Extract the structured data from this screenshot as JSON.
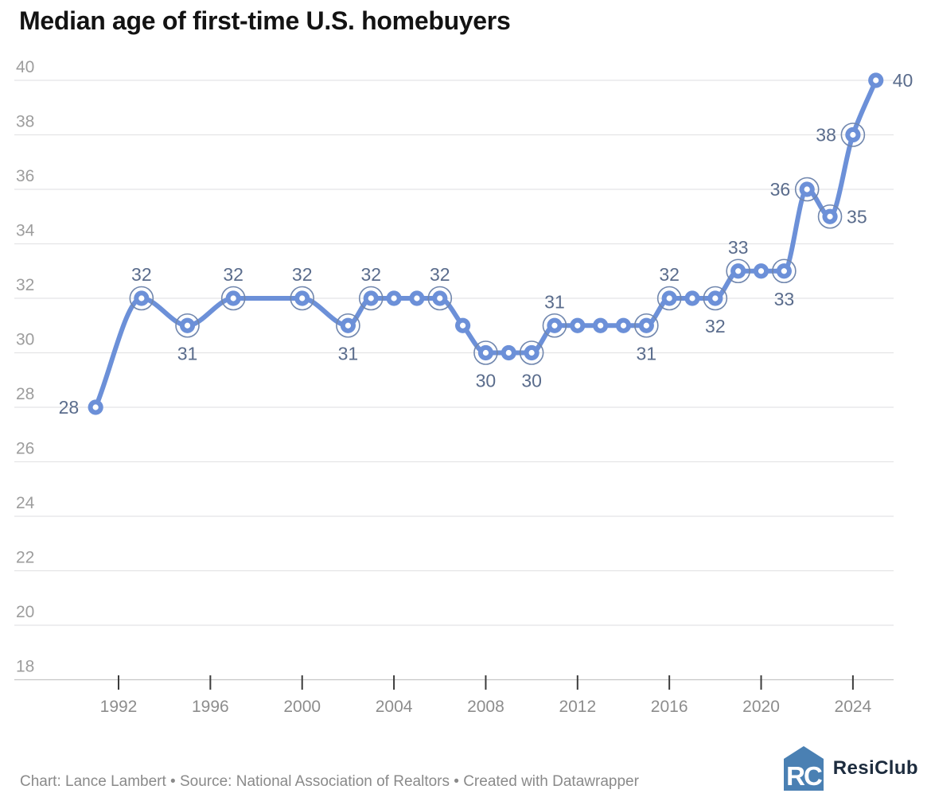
{
  "title": "Median age of first-time U.S. homebuyers",
  "footer": {
    "attribution": "Chart: Lance Lambert • Source: National Association of Realtors • Created with Datawrapper",
    "logo_text": "ResiClub",
    "logo_monogram": "RC"
  },
  "colors": {
    "line": "#6c90d8",
    "point_fill": "#6c90d8",
    "point_hole": "#ffffff",
    "ring": "#7187ae",
    "value_label": "#5a6c8c",
    "grid": "#e4e4e6",
    "baseline": "#c6c6c6",
    "y_tick_label": "#9d9d9d",
    "x_tick_label": "#8d8d8d",
    "tick_mark": "#3c3c3c",
    "title": "#131313",
    "footer_text": "#8a8a8a",
    "logo_blue": "#4a80b3",
    "logo_text_color": "#1d2c3e"
  },
  "chart_data": {
    "type": "line",
    "title": "Median age of first-time U.S. homebuyers",
    "xlabel": "",
    "ylabel": "",
    "ylim": [
      18,
      40
    ],
    "ytick_step": 2,
    "yticks": [
      18,
      20,
      22,
      24,
      26,
      28,
      30,
      32,
      34,
      36,
      38,
      40
    ],
    "xticks": [
      1992,
      1996,
      2000,
      2004,
      2008,
      2012,
      2016,
      2020,
      2024
    ],
    "grid": true,
    "legend_position": "none",
    "x": [
      1991,
      1993,
      1995,
      1997,
      2000,
      2002,
      2003,
      2004,
      2005,
      2006,
      2007,
      2008,
      2009,
      2010,
      2011,
      2012,
      2013,
      2014,
      2015,
      2016,
      2017,
      2018,
      2019,
      2020,
      2021,
      2022,
      2023,
      2024,
      2025
    ],
    "values": [
      28,
      32,
      31,
      32,
      32,
      31,
      32,
      32,
      32,
      32,
      31,
      30,
      30,
      30,
      31,
      31,
      31,
      31,
      31,
      32,
      32,
      32,
      33,
      33,
      33,
      36,
      35,
      38,
      40
    ],
    "points": [
      {
        "year": 1991,
        "value": 28,
        "label": "28",
        "label_pos": "left",
        "ring": false
      },
      {
        "year": 1993,
        "value": 32,
        "label": "32",
        "label_pos": "above",
        "ring": true
      },
      {
        "year": 1995,
        "value": 31,
        "label": "31",
        "label_pos": "below",
        "ring": true
      },
      {
        "year": 1997,
        "value": 32,
        "label": "32",
        "label_pos": "above",
        "ring": true
      },
      {
        "year": 2000,
        "value": 32,
        "label": "32",
        "label_pos": "above",
        "ring": true
      },
      {
        "year": 2002,
        "value": 31,
        "label": "31",
        "label_pos": "below",
        "ring": true
      },
      {
        "year": 2003,
        "value": 32,
        "label": "32",
        "label_pos": "above",
        "ring": true
      },
      {
        "year": 2004,
        "value": 32,
        "label": null,
        "label_pos": null,
        "ring": false
      },
      {
        "year": 2005,
        "value": 32,
        "label": null,
        "label_pos": null,
        "ring": false
      },
      {
        "year": 2006,
        "value": 32,
        "label": "32",
        "label_pos": "above",
        "ring": true
      },
      {
        "year": 2007,
        "value": 31,
        "label": null,
        "label_pos": null,
        "ring": false
      },
      {
        "year": 2008,
        "value": 30,
        "label": "30",
        "label_pos": "below",
        "ring": true
      },
      {
        "year": 2009,
        "value": 30,
        "label": null,
        "label_pos": null,
        "ring": false
      },
      {
        "year": 2010,
        "value": 30,
        "label": "30",
        "label_pos": "below",
        "ring": true
      },
      {
        "year": 2011,
        "value": 31,
        "label": "31",
        "label_pos": "above",
        "ring": true
      },
      {
        "year": 2012,
        "value": 31,
        "label": null,
        "label_pos": null,
        "ring": false
      },
      {
        "year": 2013,
        "value": 31,
        "label": null,
        "label_pos": null,
        "ring": false
      },
      {
        "year": 2014,
        "value": 31,
        "label": null,
        "label_pos": null,
        "ring": false
      },
      {
        "year": 2015,
        "value": 31,
        "label": "31",
        "label_pos": "below",
        "ring": true
      },
      {
        "year": 2016,
        "value": 32,
        "label": "32",
        "label_pos": "above",
        "ring": true
      },
      {
        "year": 2017,
        "value": 32,
        "label": null,
        "label_pos": null,
        "ring": false
      },
      {
        "year": 2018,
        "value": 32,
        "label": "32",
        "label_pos": "below",
        "ring": true
      },
      {
        "year": 2019,
        "value": 33,
        "label": "33",
        "label_pos": "above",
        "ring": true
      },
      {
        "year": 2020,
        "value": 33,
        "label": null,
        "label_pos": null,
        "ring": false
      },
      {
        "year": 2021,
        "value": 33,
        "label": "33",
        "label_pos": "below",
        "ring": true
      },
      {
        "year": 2022,
        "value": 36,
        "label": "36",
        "label_pos": "left",
        "ring": true
      },
      {
        "year": 2023,
        "value": 35,
        "label": "35",
        "label_pos": "right",
        "ring": true
      },
      {
        "year": 2024,
        "value": 38,
        "label": "38",
        "label_pos": "left",
        "ring": true
      },
      {
        "year": 2025,
        "value": 40,
        "label": "40",
        "label_pos": "right",
        "ring": false
      }
    ]
  }
}
